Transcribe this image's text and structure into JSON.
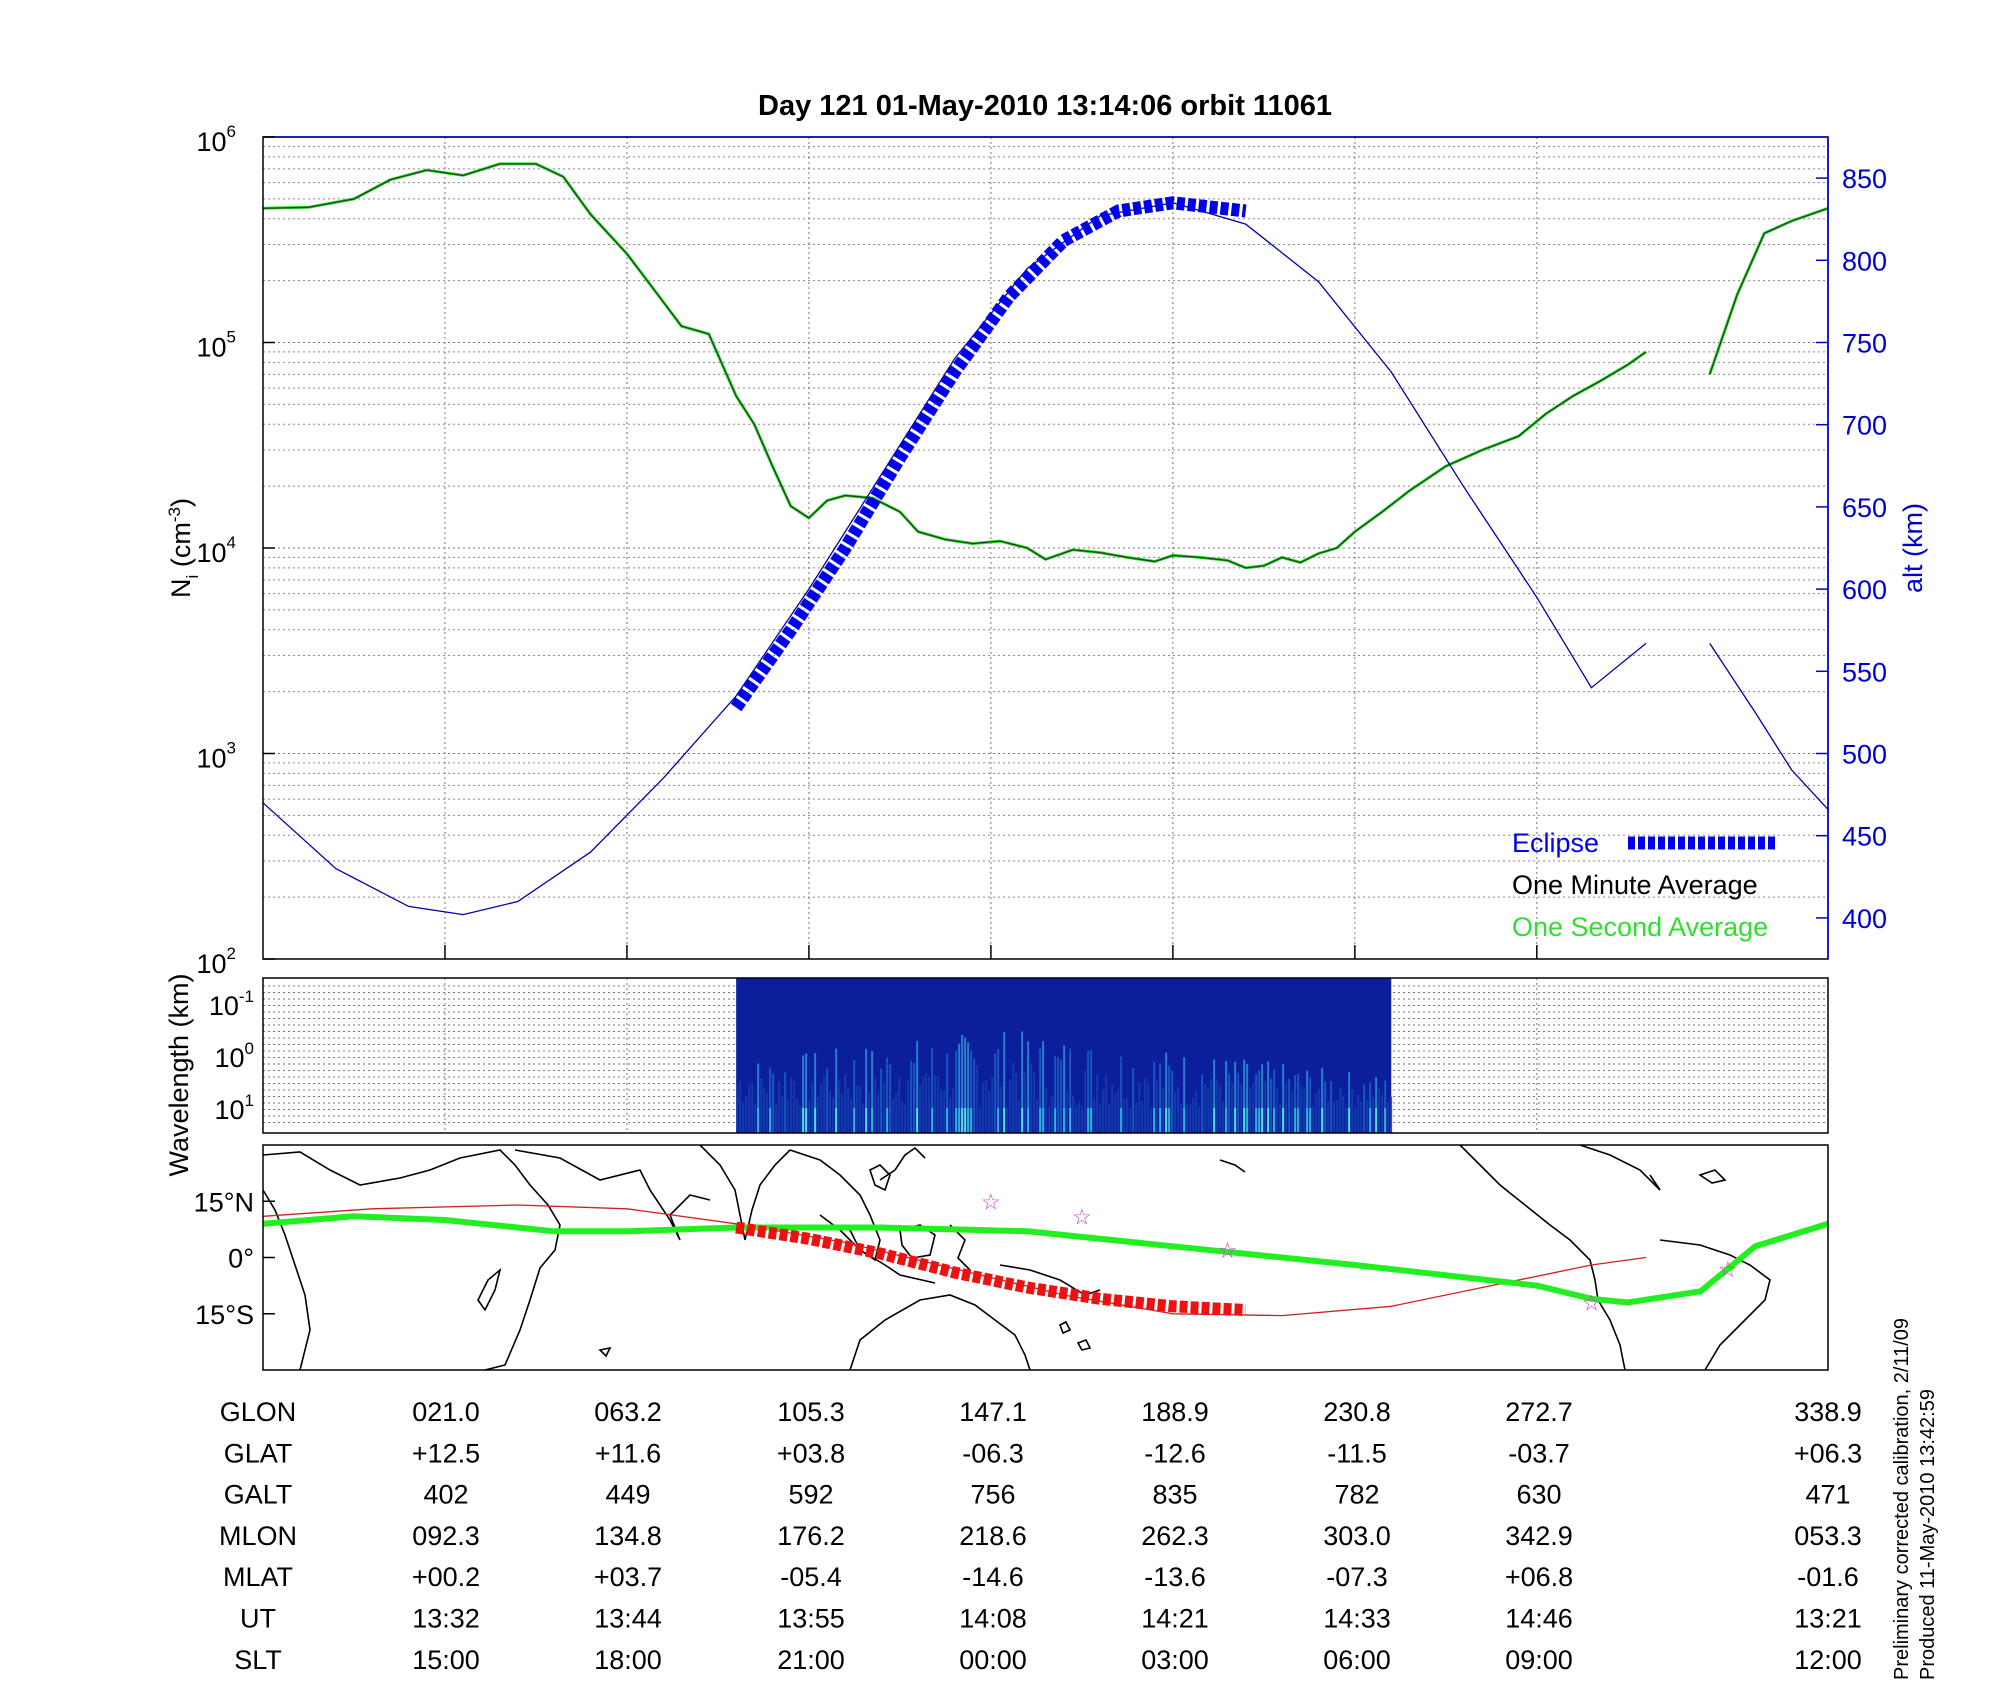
{
  "colors": {
    "density_minute": "#1a4d1a",
    "density_second": "#33dd33",
    "altitude": "#0000aa",
    "eclipse": "#0000ee",
    "track": "#22ee22",
    "magnetic_equator": "#cc2222",
    "track_eclipse": "#ee1111",
    "star": "#cc44cc",
    "axis_right": "#0000cc"
  },
  "chart_data": [
    {
      "type": "line",
      "title": "Day 121  01-May-2010 13:14:06   orbit 11061",
      "ylabel": "N",
      "ylabel_sub": "i",
      "ylabel_unit": "(cm",
      "ylabel_unit_exp": "-3",
      "ylabel_unit_end": ")",
      "y_scale": "log",
      "ylim": [
        100,
        1000000
      ],
      "y_ticks": [
        {
          "base": "10",
          "exp": "2",
          "value": 100
        },
        {
          "base": "10",
          "exp": "3",
          "value": 1000
        },
        {
          "base": "10",
          "exp": "4",
          "value": 10000
        },
        {
          "base": "10",
          "exp": "5",
          "value": 100000
        },
        {
          "base": "10",
          "exp": "6",
          "value": 1000000
        }
      ],
      "y2label": "alt (km)",
      "y2lim": [
        375,
        875
      ],
      "y2_ticks": [
        "400",
        "450",
        "500",
        "550",
        "600",
        "650",
        "700",
        "750",
        "800",
        "850"
      ],
      "xlim": [
        0,
        8.6
      ],
      "x_tick_positions": [
        1,
        2,
        3,
        4,
        5,
        6,
        7
      ],
      "grid": true,
      "legend": [
        {
          "label": "Eclipse",
          "color": "#0000ee"
        },
        {
          "label": "One Minute Average",
          "color": "#000000"
        },
        {
          "label": "One Second Average",
          "color": "#33dd33"
        }
      ],
      "legend_position": "bottom-right",
      "series": [
        {
          "name": "One Minute Average",
          "segments": [
            [
              [
                0,
                450000
              ],
              [
                0.25,
                455000
              ],
              [
                0.5,
                500000
              ],
              [
                0.7,
                620000
              ],
              [
                0.9,
                690000
              ],
              [
                1.1,
                650000
              ],
              [
                1.3,
                740000
              ],
              [
                1.5,
                740000
              ],
              [
                1.65,
                640000
              ],
              [
                1.8,
                420000
              ],
              [
                2.0,
                270000
              ],
              [
                2.15,
                180000
              ],
              [
                2.3,
                120000
              ],
              [
                2.45,
                110000
              ],
              [
                2.6,
                55000
              ],
              [
                2.7,
                40000
              ],
              [
                2.8,
                25000
              ],
              [
                2.9,
                16000
              ],
              [
                3.0,
                14000
              ],
              [
                3.1,
                17000
              ],
              [
                3.2,
                18000
              ],
              [
                3.35,
                17500
              ],
              [
                3.5,
                15000
              ],
              [
                3.6,
                12000
              ],
              [
                3.75,
                11000
              ],
              [
                3.9,
                10500
              ],
              [
                4.05,
                10800
              ],
              [
                4.2,
                10000
              ],
              [
                4.3,
                8800
              ],
              [
                4.45,
                9800
              ],
              [
                4.6,
                9500
              ],
              [
                4.75,
                9000
              ],
              [
                4.9,
                8600
              ],
              [
                5.0,
                9200
              ],
              [
                5.15,
                9000
              ],
              [
                5.3,
                8700
              ],
              [
                5.4,
                8000
              ],
              [
                5.5,
                8200
              ],
              [
                5.6,
                9000
              ],
              [
                5.7,
                8500
              ],
              [
                5.8,
                9400
              ],
              [
                5.9,
                10000
              ],
              [
                6.0,
                12000
              ],
              [
                6.15,
                15000
              ],
              [
                6.3,
                19000
              ],
              [
                6.5,
                25000
              ],
              [
                6.7,
                30000
              ],
              [
                6.9,
                35000
              ],
              [
                7.05,
                45000
              ],
              [
                7.2,
                55000
              ],
              [
                7.35,
                65000
              ],
              [
                7.5,
                78000
              ],
              [
                7.6,
                90000
              ]
            ],
            [
              [
                7.95,
                70000
              ],
              [
                8.1,
                170000
              ],
              [
                8.25,
                340000
              ],
              [
                8.4,
                390000
              ],
              [
                8.6,
                450000
              ]
            ]
          ]
        },
        {
          "name": "altitude",
          "axis": "right",
          "segments": [
            [
              [
                0,
                470
              ],
              [
                0.4,
                430
              ],
              [
                0.8,
                407
              ],
              [
                1.1,
                402
              ],
              [
                1.4,
                410
              ],
              [
                1.8,
                440
              ],
              [
                2.2,
                485
              ],
              [
                2.6,
                535
              ],
              [
                3.0,
                600
              ],
              [
                3.4,
                670
              ],
              [
                3.8,
                740
              ],
              [
                4.2,
                795
              ],
              [
                4.6,
                827
              ],
              [
                5.0,
                835
              ],
              [
                5.4,
                822
              ],
              [
                5.8,
                787
              ],
              [
                6.2,
                732
              ],
              [
                6.6,
                662
              ],
              [
                7.0,
                595
              ],
              [
                7.3,
                540
              ],
              [
                7.6,
                567
              ]
            ],
            [
              [
                7.95,
                567
              ],
              [
                8.2,
                525
              ],
              [
                8.4,
                490
              ],
              [
                8.6,
                466
              ]
            ]
          ]
        },
        {
          "name": "Eclipse",
          "points": [
            [
              2.6,
              528
            ],
            [
              2.9,
              575
            ],
            [
              3.2,
              625
            ],
            [
              3.5,
              680
            ],
            [
              3.8,
              732
            ],
            [
              4.1,
              778
            ],
            [
              4.4,
              812
            ],
            [
              4.7,
              830
            ],
            [
              5.0,
              835
            ],
            [
              5.4,
              830
            ]
          ]
        }
      ]
    },
    {
      "type": "heatmap",
      "ylabel": "Wavelength (km)",
      "y_ticks": [
        {
          "base": "10",
          "exp": "-1"
        },
        {
          "base": "10",
          "exp": "0"
        },
        {
          "base": "10",
          "exp": "1"
        }
      ],
      "data_x_range": [
        2.6,
        6.2
      ],
      "xlim": [
        0,
        8.6
      ]
    },
    {
      "type": "line",
      "ylim": [
        -30,
        30
      ],
      "y_ticks": [
        "15°N",
        "0°",
        "15°S"
      ],
      "series": [
        {
          "name": "track",
          "points": [
            [
              0,
              9
            ],
            [
              0.5,
              11
            ],
            [
              1.0,
              10
            ],
            [
              1.6,
              7
            ],
            [
              2.0,
              7
            ],
            [
              2.6,
              8
            ],
            [
              3.4,
              8
            ],
            [
              4.2,
              7
            ],
            [
              5.0,
              3
            ],
            [
              6.0,
              -2
            ],
            [
              7.0,
              -7.5
            ],
            [
              7.3,
              -11
            ],
            [
              7.5,
              -12
            ],
            [
              7.9,
              -9
            ],
            [
              8.2,
              3
            ],
            [
              8.6,
              9
            ]
          ]
        },
        {
          "name": "magnetic_equator",
          "points": [
            [
              0,
              11
            ],
            [
              0.6,
              13
            ],
            [
              1.4,
              14
            ],
            [
              2.0,
              13
            ],
            [
              2.6,
              9
            ],
            [
              3.2,
              4
            ],
            [
              3.8,
              -3
            ],
            [
              4.4,
              -10
            ],
            [
              5.0,
              -15
            ],
            [
              5.6,
              -15.5
            ],
            [
              6.2,
              -13
            ],
            [
              6.8,
              -7
            ],
            [
              7.3,
              -2
            ],
            [
              7.6,
              0
            ]
          ]
        },
        {
          "name": "eclipse_track",
          "points": [
            [
              2.6,
              8
            ],
            [
              3.0,
              5
            ],
            [
              3.4,
              1
            ],
            [
              3.8,
              -4
            ],
            [
              4.2,
              -8
            ],
            [
              4.6,
              -11
            ],
            [
              5.0,
              -13
            ],
            [
              5.4,
              -14
            ]
          ]
        },
        {
          "name": "stars",
          "points": [
            [
              4.0,
              15
            ],
            [
              4.5,
              11
            ],
            [
              5.3,
              2
            ],
            [
              7.3,
              -12
            ],
            [
              8.05,
              -3
            ]
          ]
        }
      ]
    }
  ],
  "table": {
    "rows": [
      {
        "label": "GLON",
        "values": [
          "021.0",
          "063.2",
          "105.3",
          "147.1",
          "188.9",
          "230.8",
          "272.7",
          "338.9"
        ]
      },
      {
        "label": "GLAT",
        "values": [
          "+12.5",
          "+11.6",
          "+03.8",
          "-06.3",
          "-12.6",
          "-11.5",
          "-03.7",
          "+06.3"
        ]
      },
      {
        "label": "GALT",
        "values": [
          "402",
          "449",
          "592",
          "756",
          "835",
          "782",
          "630",
          "471"
        ]
      },
      {
        "label": "MLON",
        "values": [
          "092.3",
          "134.8",
          "176.2",
          "218.6",
          "262.3",
          "303.0",
          "342.9",
          "053.3"
        ]
      },
      {
        "label": "MLAT",
        "values": [
          "+00.2",
          "+03.7",
          "-05.4",
          "-14.6",
          "-13.6",
          "-07.3",
          "+06.8",
          "-01.6"
        ]
      },
      {
        "label": "UT",
        "values": [
          "13:32",
          "13:44",
          "13:55",
          "14:08",
          "14:21",
          "14:33",
          "14:46",
          "13:21"
        ]
      },
      {
        "label": "SLT",
        "values": [
          "15:00",
          "18:00",
          "21:00",
          "00:00",
          "03:00",
          "06:00",
          "09:00",
          "12:00"
        ]
      }
    ]
  },
  "footer": {
    "line1": "Preliminary corrected calibration, 2/11/09",
    "line2": "Produced 11-May-2010 13:42:59"
  }
}
